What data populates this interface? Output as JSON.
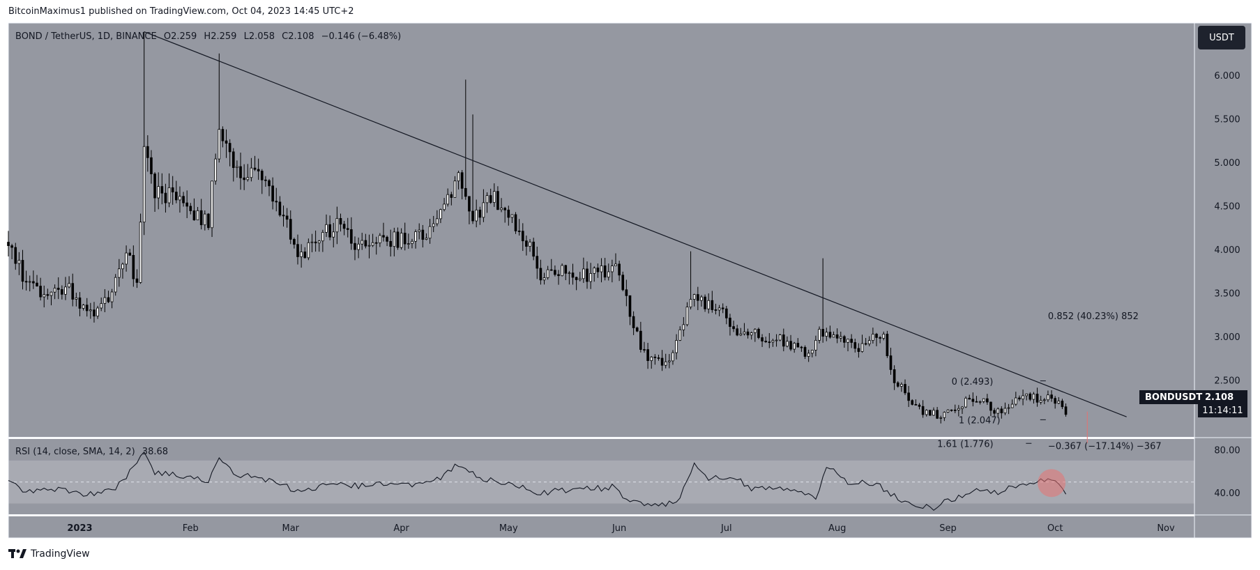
{
  "header": {
    "publish_line": "BitcoinMaximus1 published on TradingView.com, Oct 04, 2023 14:45 UTC+2"
  },
  "legend": {
    "symbol": "BOND / TetherUS, 1D, BINANCE",
    "o_label": "O",
    "o_value": "2.259",
    "h_label": "H",
    "h_value": "2.259",
    "l_label": "L",
    "l_value": "2.058",
    "c_label": "C",
    "c_value": "2.108",
    "change": "−0.146 (−6.48%)"
  },
  "currency_button": "USDT",
  "price_axis": [
    "6.000",
    "5.500",
    "5.000",
    "4.500",
    "4.000",
    "3.500",
    "3.000",
    "2.500"
  ],
  "last_price": {
    "symbol": "BONDUSDT",
    "price": "2.108",
    "countdown": "11:14:11"
  },
  "time_axis": [
    {
      "label": "2023",
      "bold": true
    },
    {
      "label": "Feb"
    },
    {
      "label": "Mar"
    },
    {
      "label": "Apr"
    },
    {
      "label": "May"
    },
    {
      "label": "Jun"
    },
    {
      "label": "Jul"
    },
    {
      "label": "Aug"
    },
    {
      "label": "Sep"
    },
    {
      "label": "Oct"
    },
    {
      "label": "Nov"
    }
  ],
  "annotations": {
    "measure_up": "0.852 (40.23%) 852",
    "fib_0": "0 (2.493)",
    "fib_1": "1 (2.047)",
    "fib_161": "1.61 (1.776)",
    "measure_down": "−0.367 (−17.14%) −367"
  },
  "rsi": {
    "legend": "RSI (14, close, SMA, 14, 2)",
    "value": "38.68",
    "axis": [
      "80.00",
      "40.00"
    ]
  },
  "footer": {
    "brand": "TradingView"
  },
  "colors": {
    "chart_bg": "#9598a1",
    "rsi_band": "#a8aab2",
    "candle": "#000000",
    "highlight_circle": "#e57373",
    "price_tag_bg": "#131722"
  },
  "chart_data": {
    "type": "candlestick",
    "symbol": "BOND / TetherUS",
    "interval": "1D",
    "y_range": [
      1.85,
      6.6
    ],
    "x_range": [
      "2022-12-12",
      "2023-11-09"
    ],
    "anchor_closes": [
      [
        "2022-12-12",
        4.1
      ],
      [
        "2022-12-16",
        3.7
      ],
      [
        "2022-12-22",
        3.4
      ],
      [
        "2022-12-28",
        3.6
      ],
      [
        "2023-01-01",
        3.3
      ],
      [
        "2023-01-06",
        3.3
      ],
      [
        "2023-01-10",
        3.5
      ],
      [
        "2023-01-14",
        4.0
      ],
      [
        "2023-01-17",
        3.6
      ],
      [
        "2023-01-19",
        5.1
      ],
      [
        "2023-01-22",
        4.7
      ],
      [
        "2023-01-26",
        4.6
      ],
      [
        "2023-02-01",
        4.4
      ],
      [
        "2023-02-06",
        4.3
      ],
      [
        "2023-02-09",
        5.5
      ],
      [
        "2023-02-14",
        4.9
      ],
      [
        "2023-02-20",
        4.8
      ],
      [
        "2023-02-25",
        4.6
      ],
      [
        "2023-03-03",
        3.9
      ],
      [
        "2023-03-08",
        4.1
      ],
      [
        "2023-03-14",
        4.3
      ],
      [
        "2023-03-20",
        4.0
      ],
      [
        "2023-03-27",
        4.1
      ],
      [
        "2023-04-03",
        4.1
      ],
      [
        "2023-04-08",
        4.2
      ],
      [
        "2023-04-13",
        4.5
      ],
      [
        "2023-04-17",
        4.9
      ],
      [
        "2023-04-21",
        4.4
      ],
      [
        "2023-04-26",
        4.6
      ],
      [
        "2023-05-01",
        4.4
      ],
      [
        "2023-05-05",
        4.2
      ],
      [
        "2023-05-10",
        3.7
      ],
      [
        "2023-05-18",
        3.75
      ],
      [
        "2023-05-25",
        3.7
      ],
      [
        "2023-05-31",
        3.8
      ],
      [
        "2023-06-06",
        3.0
      ],
      [
        "2023-06-10",
        2.7
      ],
      [
        "2023-06-16",
        2.75
      ],
      [
        "2023-06-21",
        3.45
      ],
      [
        "2023-06-28",
        3.35
      ],
      [
        "2023-07-04",
        3.05
      ],
      [
        "2023-07-12",
        3.0
      ],
      [
        "2023-07-20",
        2.9
      ],
      [
        "2023-07-24",
        2.8
      ],
      [
        "2023-07-27",
        3.1
      ],
      [
        "2023-07-31",
        3.0
      ],
      [
        "2023-08-07",
        2.9
      ],
      [
        "2023-08-14",
        3.0
      ],
      [
        "2023-08-17",
        2.5
      ],
      [
        "2023-08-24",
        2.15
      ],
      [
        "2023-08-29",
        2.1
      ],
      [
        "2023-09-03",
        2.2
      ],
      [
        "2023-09-08",
        2.3
      ],
      [
        "2023-09-15",
        2.15
      ],
      [
        "2023-09-22",
        2.3
      ],
      [
        "2023-09-28",
        2.3
      ],
      [
        "2023-10-02",
        2.25
      ],
      [
        "2023-10-04",
        2.108
      ]
    ],
    "wick_highs": [
      [
        "2023-01-19",
        6.5
      ],
      [
        "2023-02-09",
        6.25
      ],
      [
        "2023-04-19",
        5.95
      ],
      [
        "2023-06-21",
        3.98
      ],
      [
        "2023-07-28",
        3.9
      ],
      [
        "2023-04-21",
        5.55
      ]
    ],
    "trendline": [
      [
        "2023-01-19",
        6.5
      ],
      [
        "2023-10-21",
        2.08
      ]
    ],
    "rsi_series": {
      "range": [
        20,
        90
      ],
      "anchors": [
        [
          "2022-12-12",
          50
        ],
        [
          "2022-12-18",
          40
        ],
        [
          "2022-12-26",
          44
        ],
        [
          "2023-01-02",
          38
        ],
        [
          "2023-01-10",
          42
        ],
        [
          "2023-01-16",
          62
        ],
        [
          "2023-01-19",
          76
        ],
        [
          "2023-01-22",
          58
        ],
        [
          "2023-02-01",
          56
        ],
        [
          "2023-02-06",
          50
        ],
        [
          "2023-02-09",
          70
        ],
        [
          "2023-02-14",
          57
        ],
        [
          "2023-02-24",
          51
        ],
        [
          "2023-03-04",
          40
        ],
        [
          "2023-03-12",
          48
        ],
        [
          "2023-03-20",
          46
        ],
        [
          "2023-03-28",
          49
        ],
        [
          "2023-04-04",
          48
        ],
        [
          "2023-04-12",
          55
        ],
        [
          "2023-04-17",
          66
        ],
        [
          "2023-04-20",
          60
        ],
        [
          "2023-04-25",
          52
        ],
        [
          "2023-05-01",
          48
        ],
        [
          "2023-05-10",
          40
        ],
        [
          "2023-05-20",
          43
        ],
        [
          "2023-05-30",
          45
        ],
        [
          "2023-06-05",
          30
        ],
        [
          "2023-06-12",
          28
        ],
        [
          "2023-06-18",
          34
        ],
        [
          "2023-06-22",
          68
        ],
        [
          "2023-06-26",
          52
        ],
        [
          "2023-07-02",
          56
        ],
        [
          "2023-07-08",
          44
        ],
        [
          "2023-07-16",
          46
        ],
        [
          "2023-07-22",
          40
        ],
        [
          "2023-07-26",
          36
        ],
        [
          "2023-07-29",
          64
        ],
        [
          "2023-08-04",
          50
        ],
        [
          "2023-08-12",
          48
        ],
        [
          "2023-08-16",
          38
        ],
        [
          "2023-08-22",
          30
        ],
        [
          "2023-08-28",
          26
        ],
        [
          "2023-09-02",
          34
        ],
        [
          "2023-09-08",
          42
        ],
        [
          "2023-09-14",
          40
        ],
        [
          "2023-09-20",
          46
        ],
        [
          "2023-09-26",
          50
        ],
        [
          "2023-09-29",
          54
        ],
        [
          "2023-10-02",
          50
        ],
        [
          "2023-10-04",
          38.68
        ]
      ],
      "levels": [
        70,
        50,
        30
      ]
    }
  }
}
